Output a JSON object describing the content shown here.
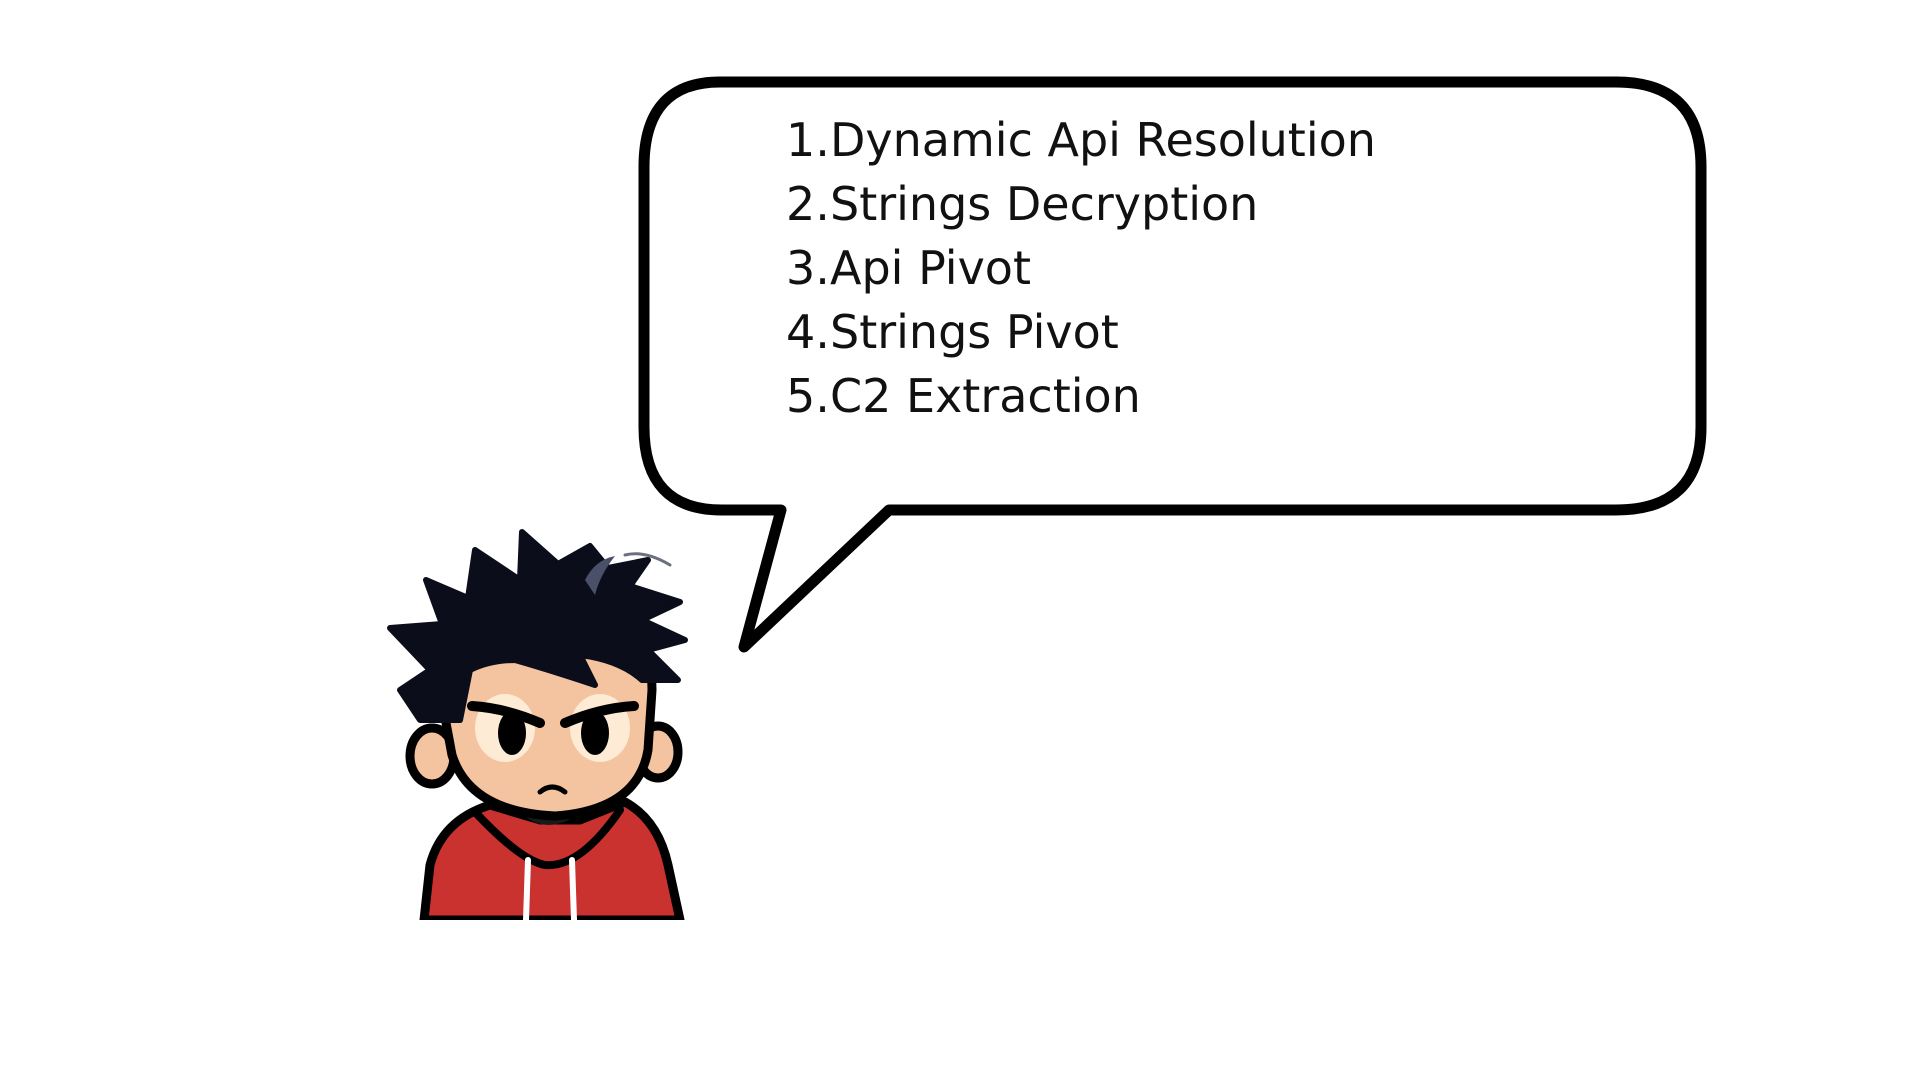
{
  "speech_bubble": {
    "steps": [
      {
        "number": "1.",
        "label": "Dynamic Api Resolution"
      },
      {
        "number": "2.",
        "label": "Strings Decryption"
      },
      {
        "number": "3.",
        "label": "Api Pivot"
      },
      {
        "number": "4.",
        "label": "Strings Pivot"
      },
      {
        "number": "5.",
        "label": "C2 Extraction"
      }
    ]
  },
  "character": {
    "icon": "cartoon-boy-red-hoodie-illustration",
    "colors": {
      "hair": "#0b0d1a",
      "skin": "#f4c3a0",
      "hoodie": "#c9322e",
      "outline": "#000000"
    }
  }
}
